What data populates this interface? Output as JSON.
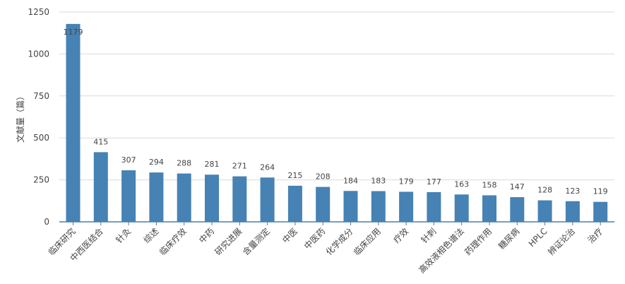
{
  "chart_data": {
    "type": "bar",
    "title": "",
    "xlabel": "",
    "ylabel": "文献量（篇）",
    "ylim": [
      0,
      1250
    ],
    "yticks": [
      0,
      250,
      500,
      750,
      1000,
      1250
    ],
    "grid": true,
    "color": "#4682b4",
    "categories": [
      "临床研究",
      "中西医结合",
      "针灸",
      "综述",
      "临床疗效",
      "中药",
      "研究进展",
      "含量测定",
      "中医",
      "中医药",
      "化学成分",
      "临床应用",
      "疗效",
      "针刺",
      "高效液相色谱法",
      "药理作用",
      "糖尿病",
      "HPLC",
      "辨证论治",
      "治疗"
    ],
    "values": [
      1179,
      415,
      307,
      294,
      288,
      281,
      271,
      264,
      215,
      208,
      184,
      183,
      179,
      177,
      163,
      158,
      147,
      128,
      123,
      119
    ]
  }
}
